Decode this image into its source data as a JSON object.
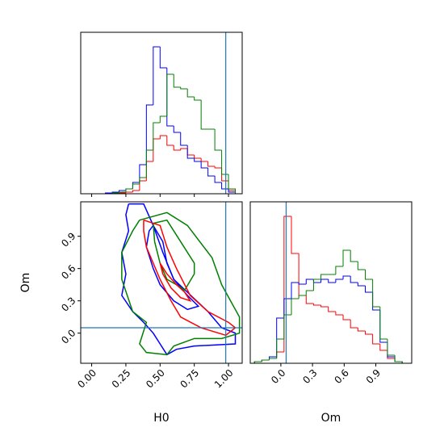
{
  "chart_data": [
    {
      "type": "histogram",
      "bins": [
        0.0,
        0.05,
        0.1,
        0.15,
        0.2,
        0.25,
        0.3,
        0.35,
        0.4,
        0.45,
        0.5,
        0.55,
        0.6,
        0.65,
        0.7,
        0.75,
        0.8,
        0.85,
        0.9,
        0.95,
        1.0,
        1.05
      ],
      "series": [
        {
          "color": "#ff0000",
          "values": [
            0,
            0,
            0,
            0,
            0.5,
            1,
            2,
            8,
            20,
            34,
            36,
            30,
            27,
            28,
            24,
            22,
            20,
            17,
            16,
            8,
            2
          ]
        },
        {
          "color": "#0000ff",
          "values": [
            0,
            0,
            0.5,
            1,
            2,
            3,
            7,
            18,
            55,
            91,
            78,
            42,
            38,
            30,
            22,
            20,
            16,
            11,
            7,
            3,
            1
          ]
        },
        {
          "color": "#008000",
          "values": [
            0,
            0,
            0,
            0.5,
            1,
            3,
            6,
            10,
            27,
            44,
            48,
            74,
            66,
            65,
            60,
            58,
            40,
            40,
            27,
            12,
            3
          ]
        }
      ],
      "xlim": [
        -0.08,
        1.1
      ],
      "ylim": [
        0,
        100
      ],
      "xticks": [
        0,
        0.25,
        0.5,
        0.75,
        1
      ],
      "xtick_labels": false,
      "truth_x": 0.98,
      "truth_color": "#1f77b4"
    },
    {
      "type": "contour",
      "xlabel": "H0",
      "ylabel": "Om",
      "series": [
        {
          "color": "#0000ff",
          "x": [
            0.27,
            0.38,
            0.45,
            0.52,
            0.6,
            0.7,
            0.85,
            0.95,
            1.05,
            1.05,
            0.75,
            0.62,
            0.55,
            0.5,
            0.45,
            0.38,
            0.3,
            0.22,
            0.25,
            0.22,
            0.27,
            0.25,
            0.27
          ],
          "y": [
            1.2,
            1.2,
            1.0,
            0.75,
            0.5,
            0.38,
            0.2,
            0.05,
            0.0,
            -0.1,
            -0.12,
            -0.15,
            -0.2,
            -0.1,
            0.0,
            0.1,
            0.2,
            0.35,
            0.55,
            0.75,
            0.95,
            1.1,
            1.2
          ]
        },
        {
          "color": "#0000ff",
          "x": [
            0.45,
            0.52,
            0.55,
            0.6,
            0.7,
            0.78,
            0.7,
            0.6,
            0.5,
            0.45,
            0.4,
            0.42,
            0.45
          ],
          "y": [
            1.0,
            0.85,
            0.65,
            0.5,
            0.35,
            0.25,
            0.22,
            0.3,
            0.45,
            0.6,
            0.8,
            0.95,
            1.0
          ]
        },
        {
          "color": "#008000",
          "x": [
            0.35,
            0.55,
            0.7,
            0.88,
            0.95,
            1.08,
            1.08,
            0.95,
            0.75,
            0.6,
            0.55,
            0.4,
            0.35,
            0.4,
            0.3,
            0.22,
            0.22,
            0.3,
            0.35
          ],
          "y": [
            1.05,
            1.12,
            1.0,
            0.7,
            0.45,
            0.15,
            0.0,
            -0.05,
            -0.05,
            -0.12,
            -0.2,
            -0.18,
            -0.1,
            0.1,
            0.2,
            0.5,
            0.75,
            0.95,
            1.05
          ]
        },
        {
          "color": "#008000",
          "x": [
            0.45,
            0.55,
            0.65,
            0.75,
            0.75,
            0.68,
            0.62,
            0.55,
            0.5,
            0.46,
            0.45
          ],
          "y": [
            1.02,
            1.05,
            0.85,
            0.65,
            0.55,
            0.4,
            0.45,
            0.5,
            0.65,
            0.85,
            1.02
          ]
        },
        {
          "color": "#ff0000",
          "x": [
            0.38,
            0.5,
            0.55,
            0.62,
            0.72,
            0.85,
            1.0,
            1.05,
            0.98,
            0.8,
            0.65,
            0.58,
            0.5,
            0.45,
            0.4,
            0.38,
            0.38
          ],
          "y": [
            1.05,
            1.0,
            0.8,
            0.6,
            0.35,
            0.2,
            0.1,
            0.05,
            -0.02,
            0.05,
            0.15,
            0.3,
            0.5,
            0.65,
            0.8,
            0.95,
            1.05
          ]
        },
        {
          "color": "#ff0000",
          "x": [
            0.5,
            0.55,
            0.62,
            0.68,
            0.72,
            0.65,
            0.58,
            0.52,
            0.5
          ],
          "y": [
            0.65,
            0.55,
            0.45,
            0.38,
            0.3,
            0.33,
            0.42,
            0.55,
            0.65
          ]
        }
      ],
      "xlim": [
        -0.08,
        1.1
      ],
      "ylim": [
        -0.28,
        1.22
      ],
      "xticks": [
        {
          "value": 0,
          "label": "0.00"
        },
        {
          "value": 0.25,
          "label": "0.25"
        },
        {
          "value": 0.5,
          "label": "0.50"
        },
        {
          "value": 0.75,
          "label": "0.75"
        },
        {
          "value": 1,
          "label": "1.00"
        }
      ],
      "yticks": [
        {
          "value": 0,
          "label": "0.0"
        },
        {
          "value": 0.3,
          "label": "0.3"
        },
        {
          "value": 0.6,
          "label": "0.6"
        },
        {
          "value": 0.9,
          "label": "0.9"
        }
      ],
      "truth_x": 0.98,
      "truth_y": 0.05,
      "truth_color": "#1f77b4"
    },
    {
      "type": "histogram",
      "xlabel": "Om",
      "bins": [
        -0.25,
        -0.18,
        -0.11,
        -0.04,
        0.03,
        0.1,
        0.17,
        0.24,
        0.31,
        0.38,
        0.45,
        0.52,
        0.59,
        0.66,
        0.73,
        0.8,
        0.87,
        0.94,
        1.01,
        1.08,
        1.15
      ],
      "series": [
        {
          "color": "#ff0000",
          "values": [
            1,
            2,
            3,
            7,
            91,
            68,
            42,
            37,
            36,
            35,
            32,
            30,
            27,
            22,
            20,
            18,
            12,
            8,
            3,
            1
          ]
        },
        {
          "color": "#0000ff",
          "values": [
            1,
            2,
            4,
            28,
            40,
            50,
            49,
            52,
            50,
            52,
            50,
            52,
            54,
            50,
            48,
            44,
            33,
            13,
            4,
            1
          ]
        },
        {
          "color": "#008000",
          "values": [
            1,
            2,
            3,
            15,
            30,
            40,
            42,
            45,
            52,
            55,
            55,
            60,
            70,
            63,
            58,
            52,
            35,
            15,
            5,
            1
          ]
        }
      ],
      "xlim": [
        -0.29,
        1.24
      ],
      "ylim": [
        0,
        100
      ],
      "xticks": [
        {
          "value": 0,
          "label": "0.0"
        },
        {
          "value": 0.3,
          "label": "0.3"
        },
        {
          "value": 0.6,
          "label": "0.6"
        },
        {
          "value": 0.9,
          "label": "0.9"
        }
      ],
      "truth_x": 0.05,
      "truth_color": "#1f77b4"
    }
  ]
}
